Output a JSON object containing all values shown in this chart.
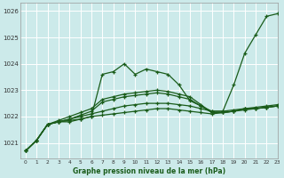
{
  "bg_color": "#cceaea",
  "grid_color": "#aadddd",
  "line_color": "#1a5c1a",
  "marker": "+",
  "xlabel": "Graphe pression niveau de la mer (hPa)",
  "xlim": [
    -0.5,
    23
  ],
  "ylim": [
    1020.4,
    1026.3
  ],
  "yticks": [
    1021,
    1022,
    1023,
    1024,
    1025,
    1026
  ],
  "xticks": [
    0,
    1,
    2,
    3,
    4,
    5,
    6,
    7,
    8,
    9,
    10,
    11,
    12,
    13,
    14,
    15,
    16,
    17,
    18,
    19,
    20,
    21,
    22,
    23
  ],
  "lines": [
    [
      1020.7,
      1021.1,
      1021.7,
      1021.8,
      1021.8,
      1021.9,
      1022.0,
      1023.6,
      1023.7,
      1024.0,
      1023.6,
      1023.8,
      1023.7,
      1023.6,
      1023.2,
      1022.6,
      1022.4,
      1022.2,
      1022.2,
      1023.2,
      1024.4,
      1025.1,
      1025.8,
      1025.9
    ],
    [
      1020.7,
      1021.1,
      1021.7,
      1021.8,
      1021.85,
      1021.9,
      1022.0,
      1022.05,
      1022.1,
      1022.15,
      1022.2,
      1022.25,
      1022.3,
      1022.3,
      1022.25,
      1022.2,
      1022.15,
      1022.1,
      1022.15,
      1022.2,
      1022.25,
      1022.3,
      1022.35,
      1022.4
    ],
    [
      1020.7,
      1021.1,
      1021.7,
      1021.8,
      1021.9,
      1022.0,
      1022.1,
      1022.2,
      1022.3,
      1022.4,
      1022.45,
      1022.5,
      1022.5,
      1022.5,
      1022.45,
      1022.4,
      1022.3,
      1022.2,
      1022.2,
      1022.25,
      1022.3,
      1022.3,
      1022.35,
      1022.4
    ],
    [
      1020.7,
      1021.1,
      1021.7,
      1021.8,
      1021.9,
      1022.05,
      1022.2,
      1022.55,
      1022.65,
      1022.75,
      1022.8,
      1022.85,
      1022.9,
      1022.85,
      1022.75,
      1022.65,
      1022.4,
      1022.15,
      1022.15,
      1022.2,
      1022.3,
      1022.3,
      1022.35,
      1022.4
    ],
    [
      1020.7,
      1021.1,
      1021.7,
      1021.85,
      1022.0,
      1022.15,
      1022.3,
      1022.65,
      1022.75,
      1022.85,
      1022.9,
      1022.95,
      1023.0,
      1022.95,
      1022.85,
      1022.75,
      1022.45,
      1022.15,
      1022.15,
      1022.2,
      1022.3,
      1022.35,
      1022.4,
      1022.45
    ]
  ]
}
